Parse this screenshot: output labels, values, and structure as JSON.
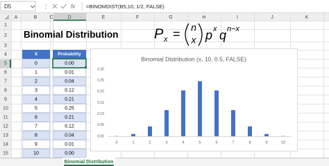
{
  "name_box": "D5",
  "fx_label": "fx",
  "formula": "=BINOMDIST(B5,10, 1/2, FALSE)",
  "columns": [
    "A",
    "B",
    "C",
    "D",
    "E",
    "F",
    "G",
    "H",
    "I",
    "J",
    "K"
  ],
  "rows": [
    1,
    2,
    3,
    4,
    5,
    6,
    7,
    8,
    9,
    10,
    11,
    12,
    13,
    14,
    15
  ],
  "title": "Binomial Distribution",
  "equation": {
    "lhs": "P",
    "lhs_sub": "x",
    "equals": "=",
    "binom_top": "n",
    "binom_bottom": "x",
    "p": "p",
    "p_exp": "x",
    "q": "q",
    "q_exp": "n−x"
  },
  "table": {
    "header": [
      "X",
      "Probability"
    ],
    "rows": [
      [
        0,
        "0.00"
      ],
      [
        1,
        "0.01"
      ],
      [
        2,
        "0.04"
      ],
      [
        3,
        "0.12"
      ],
      [
        4,
        "0.21"
      ],
      [
        5,
        "0.25"
      ],
      [
        6,
        "0.21"
      ],
      [
        7,
        "0.12"
      ],
      [
        8,
        "0.04"
      ],
      [
        9,
        "0.01"
      ],
      [
        10,
        "0.00"
      ]
    ]
  },
  "chart_data": {
    "type": "bar",
    "title": "Binomial Distribution (x, 10, 0.5, FALSE)",
    "categories": [
      0,
      1,
      2,
      3,
      4,
      5,
      6,
      7,
      8,
      9,
      10
    ],
    "values": [
      0.001,
      0.01,
      0.044,
      0.117,
      0.205,
      0.246,
      0.205,
      0.117,
      0.044,
      0.01,
      0.001
    ],
    "color": "#4472c4",
    "ylim": [
      0,
      0.3
    ],
    "yticks": [
      {
        "value": 0,
        "label": "0.00"
      },
      {
        "value": 0.05,
        "label": "0.05"
      },
      {
        "value": 0.1,
        "label": "0.10"
      },
      {
        "value": 0.15,
        "label": "0.15"
      },
      {
        "value": 0.2,
        "label": "0.20"
      },
      {
        "value": 0.25,
        "label": "0.25"
      },
      {
        "value": 0.3,
        "label": "0.30"
      }
    ],
    "grid": false
  },
  "sheet_tab": "Binomial Distribution"
}
